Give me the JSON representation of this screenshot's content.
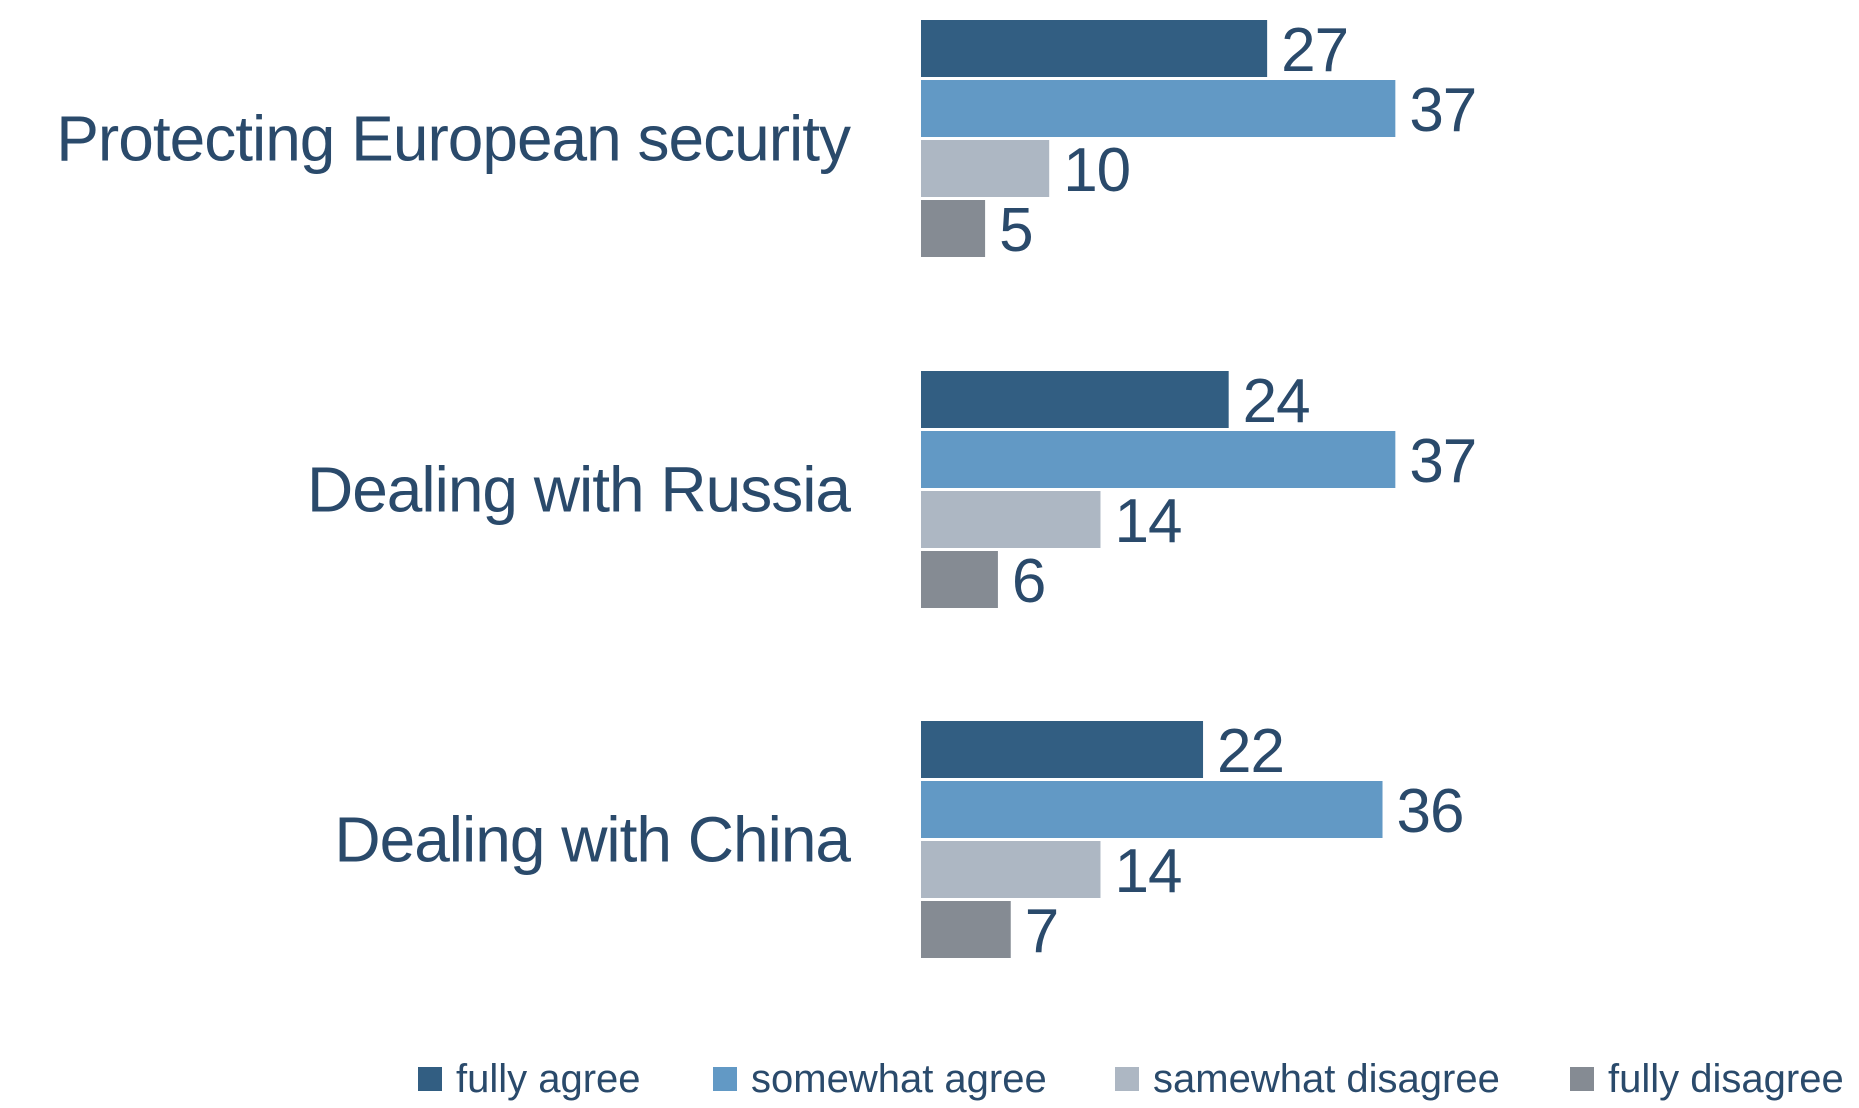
{
  "chart_data": {
    "type": "bar",
    "orientation": "horizontal",
    "title": "",
    "xlabel": "",
    "ylabel": "",
    "xlim": [
      0,
      37
    ],
    "grid": false,
    "legend_position": "bottom",
    "categories": [
      "Protecting European security",
      "Dealing with Russia",
      "Dealing with China"
    ],
    "series": [
      {
        "name": "fully agree",
        "color": "#325e82",
        "values": [
          27,
          24,
          22
        ]
      },
      {
        "name": "somewhat agree",
        "color": "#6299c5",
        "values": [
          37,
          37,
          36
        ]
      },
      {
        "name": "samewhat disagree",
        "color": "#adb7c3",
        "values": [
          10,
          14,
          14
        ]
      },
      {
        "name": "fully disagree",
        "color": "#858b93",
        "values": [
          5,
          6,
          7
        ]
      }
    ],
    "text_color": "#2a4a6b"
  }
}
